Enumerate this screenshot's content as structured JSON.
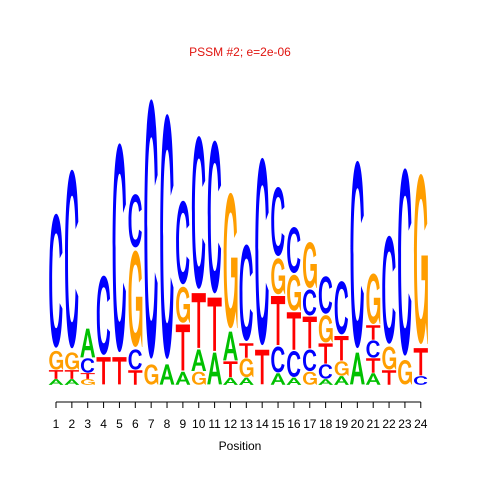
{
  "chart_data": {
    "type": "sequence-logo",
    "title": "PSSM #2; e=2e-06",
    "xlabel": "Position",
    "ylabel": "",
    "ylim": [
      0,
      2
    ],
    "alphabet": [
      "A",
      "C",
      "G",
      "T"
    ],
    "colors": {
      "A": "#00c000",
      "C": "#0000ff",
      "G": "#ff9e00",
      "T": "#ff0000"
    },
    "positions": [
      {
        "pos": "1",
        "letters": [
          [
            "A",
            0.04
          ],
          [
            "T",
            0.06
          ],
          [
            "G",
            0.13
          ],
          [
            "C",
            0.93
          ]
        ]
      },
      {
        "pos": "2",
        "letters": [
          [
            "A",
            0.04
          ],
          [
            "T",
            0.06
          ],
          [
            "G",
            0.12
          ],
          [
            "C",
            1.24
          ]
        ]
      },
      {
        "pos": "3",
        "letters": [
          [
            "G",
            0.04
          ],
          [
            "T",
            0.04
          ],
          [
            "C",
            0.1
          ],
          [
            "A",
            0.2
          ]
        ]
      },
      {
        "pos": "4",
        "letters": [
          [
            "T",
            0.19
          ],
          [
            "C",
            0.55
          ]
        ]
      },
      {
        "pos": "5",
        "letters": [
          [
            "T",
            0.19
          ],
          [
            "C",
            1.45
          ]
        ]
      },
      {
        "pos": "6",
        "letters": [
          [
            "T",
            0.1
          ],
          [
            "C",
            0.14
          ],
          [
            "G",
            0.67
          ],
          [
            "C",
            0.37
          ]
        ]
      },
      {
        "pos": "7",
        "letters": [
          [
            "G",
            0.14
          ],
          [
            "C",
            1.8
          ]
        ]
      },
      {
        "pos": "8",
        "letters": [
          [
            "A",
            0.14
          ],
          [
            "C",
            1.7
          ]
        ]
      },
      {
        "pos": "9",
        "letters": [
          [
            "A",
            0.09
          ],
          [
            "T",
            0.32
          ],
          [
            "G",
            0.25
          ],
          [
            "C",
            0.58
          ]
        ]
      },
      {
        "pos": "10",
        "letters": [
          [
            "G",
            0.09
          ],
          [
            "A",
            0.15
          ],
          [
            "T",
            0.38
          ],
          [
            "C",
            1.06
          ]
        ]
      },
      {
        "pos": "11",
        "letters": [
          [
            "A",
            0.22
          ],
          [
            "T",
            0.37
          ],
          [
            "C",
            1.06
          ]
        ]
      },
      {
        "pos": "12",
        "letters": [
          [
            "A",
            0.05
          ],
          [
            "T",
            0.11
          ],
          [
            "A",
            0.2
          ],
          [
            "G",
            0.94
          ]
        ]
      },
      {
        "pos": "13",
        "letters": [
          [
            "A",
            0.05
          ],
          [
            "G",
            0.13
          ],
          [
            "T",
            0.1
          ],
          [
            "C",
            0.67
          ]
        ]
      },
      {
        "pos": "14",
        "letters": [
          [
            "T",
            0.24
          ],
          [
            "C",
            1.3
          ]
        ]
      },
      {
        "pos": "15",
        "letters": [
          [
            "A",
            0.08
          ],
          [
            "C",
            0.18
          ],
          [
            "T",
            0.34
          ],
          [
            "G",
            0.25
          ],
          [
            "C",
            0.48
          ]
        ]
      },
      {
        "pos": "16",
        "letters": [
          [
            "A",
            0.05
          ],
          [
            "C",
            0.18
          ],
          [
            "T",
            0.26
          ],
          [
            "G",
            0.25
          ],
          [
            "C",
            0.32
          ]
        ]
      },
      {
        "pos": "17",
        "letters": [
          [
            "G",
            0.09
          ],
          [
            "C",
            0.15
          ],
          [
            "T",
            0.22
          ],
          [
            "C",
            0.18
          ],
          [
            "G",
            0.32
          ]
        ]
      },
      {
        "pos": "18",
        "letters": [
          [
            "A",
            0.04
          ],
          [
            "C",
            0.1
          ],
          [
            "T",
            0.14
          ],
          [
            "G",
            0.19
          ],
          [
            "C",
            0.26
          ]
        ]
      },
      {
        "pos": "19",
        "letters": [
          [
            "A",
            0.06
          ],
          [
            "G",
            0.1
          ],
          [
            "T",
            0.17
          ],
          [
            "C",
            0.37
          ]
        ]
      },
      {
        "pos": "20",
        "letters": [
          [
            "A",
            0.22
          ],
          [
            "C",
            1.3
          ]
        ]
      },
      {
        "pos": "21",
        "letters": [
          [
            "A",
            0.08
          ],
          [
            "T",
            0.1
          ],
          [
            "C",
            0.12
          ],
          [
            "T",
            0.1
          ],
          [
            "G",
            0.35
          ]
        ]
      },
      {
        "pos": "22",
        "letters": [
          [
            "T",
            0.1
          ],
          [
            "G",
            0.16
          ],
          [
            "C",
            0.75
          ]
        ]
      },
      {
        "pos": "23",
        "letters": [
          [
            "G",
            0.17
          ],
          [
            "C",
            1.3
          ]
        ]
      },
      {
        "pos": "24",
        "letters": [
          [
            "C",
            0.06
          ],
          [
            "T",
            0.19
          ],
          [
            "G",
            1.18
          ]
        ]
      }
    ]
  }
}
